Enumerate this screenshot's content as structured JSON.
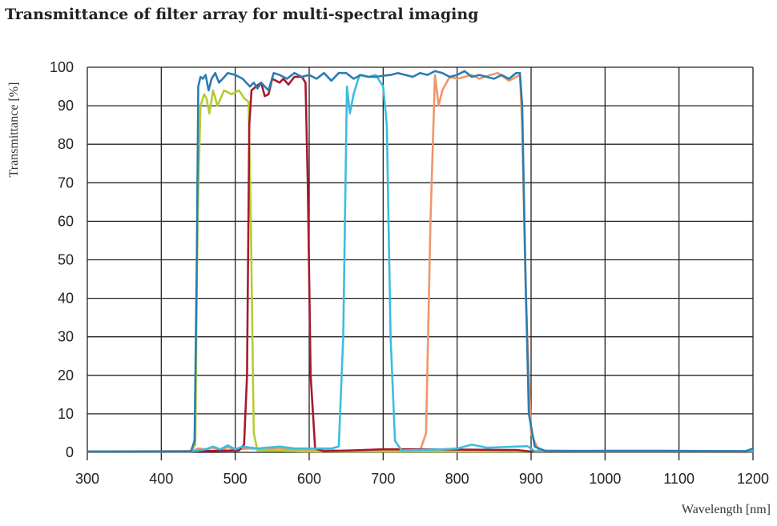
{
  "chart_data": {
    "type": "line",
    "title": "Transmittance of filter array for multi-spectral imaging",
    "xlabel": "Wavelength [nm]",
    "ylabel": "Transmittance [%]",
    "xlim": [
      300,
      1200
    ],
    "ylim": [
      0,
      100
    ],
    "xticks": [
      "300",
      "400",
      "500",
      "600",
      "700",
      "800",
      "900",
      "1000",
      "1100",
      "1200"
    ],
    "yticks": [
      "0",
      "10",
      "20",
      "30",
      "40",
      "50",
      "60",
      "70",
      "80",
      "90",
      "100"
    ],
    "grid": true,
    "legend": "none",
    "series": [
      {
        "color": "#f0956a",
        "points": [
          [
            300,
            0.2
          ],
          [
            440,
            0.2
          ],
          [
            450,
            1
          ],
          [
            460,
            0.8
          ],
          [
            470,
            1.2
          ],
          [
            480,
            0.6
          ],
          [
            490,
            1.3
          ],
          [
            500,
            0.8
          ],
          [
            520,
            1
          ],
          [
            540,
            0.8
          ],
          [
            560,
            1
          ],
          [
            580,
            0.6
          ],
          [
            600,
            0.5
          ],
          [
            620,
            0.8
          ],
          [
            640,
            0.4
          ],
          [
            700,
            0.4
          ],
          [
            750,
            0.5
          ],
          [
            758,
            5
          ],
          [
            764,
            60
          ],
          [
            770,
            98
          ],
          [
            775,
            90
          ],
          [
            780,
            94
          ],
          [
            790,
            97.5
          ],
          [
            800,
            97
          ],
          [
            810,
            97.5
          ],
          [
            820,
            98
          ],
          [
            830,
            97
          ],
          [
            845,
            98
          ],
          [
            855,
            98.5
          ],
          [
            870,
            96.5
          ],
          [
            885,
            98
          ],
          [
            888,
            85
          ],
          [
            893,
            40
          ],
          [
            900,
            5
          ],
          [
            910,
            0.5
          ],
          [
            1000,
            0.3
          ],
          [
            1200,
            0.3
          ]
        ]
      },
      {
        "color": "#b5cc34",
        "points": [
          [
            300,
            0.2
          ],
          [
            440,
            0.2
          ],
          [
            446,
            2
          ],
          [
            449,
            60
          ],
          [
            453,
            90
          ],
          [
            458,
            93
          ],
          [
            461,
            92
          ],
          [
            465,
            88
          ],
          [
            470,
            94
          ],
          [
            476,
            90
          ],
          [
            485,
            94
          ],
          [
            495,
            93
          ],
          [
            505,
            94
          ],
          [
            512,
            92
          ],
          [
            518,
            91
          ],
          [
            521,
            60
          ],
          [
            525,
            5
          ],
          [
            530,
            0.5
          ],
          [
            600,
            0.2
          ],
          [
            900,
            0.2
          ],
          [
            1200,
            0.2
          ]
        ]
      },
      {
        "color": "#a8192e",
        "points": [
          [
            300,
            0.2
          ],
          [
            450,
            0.3
          ],
          [
            505,
            0.5
          ],
          [
            512,
            2
          ],
          [
            516,
            20
          ],
          [
            519,
            85
          ],
          [
            522,
            94
          ],
          [
            528,
            95
          ],
          [
            535,
            96
          ],
          [
            540,
            92.5
          ],
          [
            545,
            93
          ],
          [
            550,
            97
          ],
          [
            560,
            96
          ],
          [
            565,
            97
          ],
          [
            572,
            95.5
          ],
          [
            580,
            97.5
          ],
          [
            590,
            97.5
          ],
          [
            595,
            96
          ],
          [
            598,
            70
          ],
          [
            602,
            20
          ],
          [
            608,
            1
          ],
          [
            620,
            0.3
          ],
          [
            660,
            0.5
          ],
          [
            700,
            0.8
          ],
          [
            750,
            0.8
          ],
          [
            800,
            0.7
          ],
          [
            880,
            0.6
          ],
          [
            900,
            0.2
          ],
          [
            1200,
            0.2
          ]
        ]
      },
      {
        "color": "#3bbde0",
        "points": [
          [
            300,
            0.2
          ],
          [
            440,
            0.2
          ],
          [
            460,
            0.8
          ],
          [
            470,
            1.5
          ],
          [
            480,
            0.8
          ],
          [
            490,
            1.8
          ],
          [
            500,
            0.8
          ],
          [
            510,
            1.5
          ],
          [
            530,
            1
          ],
          [
            560,
            1.5
          ],
          [
            580,
            1
          ],
          [
            600,
            1
          ],
          [
            630,
            1
          ],
          [
            640,
            1.5
          ],
          [
            646,
            30
          ],
          [
            651,
            95
          ],
          [
            655,
            88
          ],
          [
            660,
            93
          ],
          [
            668,
            98
          ],
          [
            680,
            97.5
          ],
          [
            690,
            98
          ],
          [
            700,
            95
          ],
          [
            705,
            85
          ],
          [
            710,
            30
          ],
          [
            716,
            3
          ],
          [
            725,
            0.5
          ],
          [
            780,
            0.8
          ],
          [
            800,
            1
          ],
          [
            820,
            2
          ],
          [
            840,
            1.2
          ],
          [
            880,
            1.5
          ],
          [
            895,
            1.6
          ],
          [
            905,
            0.3
          ],
          [
            1000,
            0.3
          ],
          [
            1200,
            0.3
          ]
        ]
      },
      {
        "color": "#2a7db0",
        "points": [
          [
            300,
            0.2
          ],
          [
            440,
            0.2
          ],
          [
            445,
            3
          ],
          [
            448,
            50
          ],
          [
            450,
            95
          ],
          [
            453,
            97.5
          ],
          [
            456,
            97
          ],
          [
            460,
            98
          ],
          [
            464,
            94
          ],
          [
            468,
            97
          ],
          [
            473,
            98.5
          ],
          [
            478,
            96
          ],
          [
            483,
            97
          ],
          [
            490,
            98.5
          ],
          [
            500,
            98
          ],
          [
            510,
            97
          ],
          [
            520,
            95
          ],
          [
            525,
            96
          ],
          [
            530,
            94.5
          ],
          [
            535,
            96
          ],
          [
            545,
            94
          ],
          [
            552,
            98.5
          ],
          [
            560,
            98
          ],
          [
            570,
            97
          ],
          [
            580,
            98.5
          ],
          [
            590,
            97.5
          ],
          [
            600,
            98
          ],
          [
            610,
            97
          ],
          [
            620,
            98.5
          ],
          [
            630,
            96.5
          ],
          [
            640,
            98.5
          ],
          [
            650,
            98.5
          ],
          [
            660,
            97
          ],
          [
            670,
            98
          ],
          [
            680,
            97.5
          ],
          [
            690,
            97.5
          ],
          [
            700,
            97.8
          ],
          [
            710,
            98
          ],
          [
            720,
            98.5
          ],
          [
            730,
            98
          ],
          [
            740,
            97.5
          ],
          [
            750,
            98.5
          ],
          [
            760,
            98
          ],
          [
            770,
            99
          ],
          [
            780,
            98.5
          ],
          [
            790,
            97.5
          ],
          [
            800,
            98
          ],
          [
            810,
            99
          ],
          [
            820,
            97.5
          ],
          [
            830,
            98
          ],
          [
            840,
            97.5
          ],
          [
            850,
            97
          ],
          [
            860,
            98
          ],
          [
            870,
            97
          ],
          [
            880,
            98.5
          ],
          [
            885,
            98.5
          ],
          [
            888,
            90
          ],
          [
            892,
            50
          ],
          [
            897,
            10
          ],
          [
            905,
            1.5
          ],
          [
            920,
            0.3
          ],
          [
            1000,
            0.4
          ],
          [
            1080,
            0.4
          ],
          [
            1190,
            0.3
          ],
          [
            1200,
            1
          ]
        ]
      }
    ]
  }
}
